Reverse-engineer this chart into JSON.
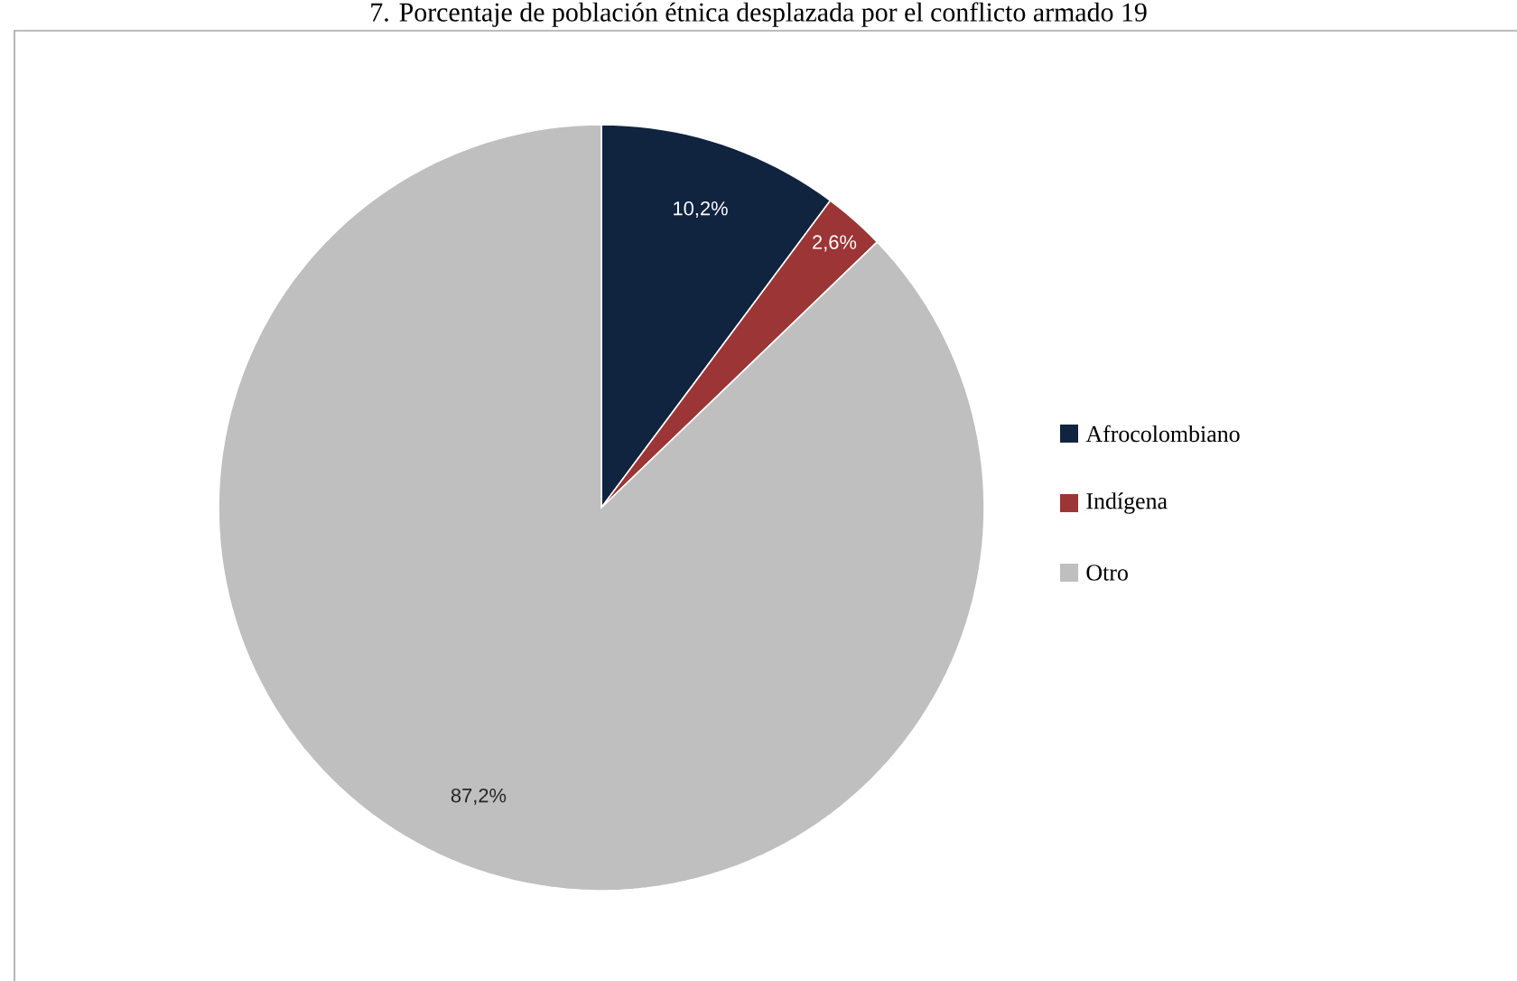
{
  "chart_data": {
    "type": "pie",
    "title": "7. Porcentaje de población étnica desplazada por el conflicto armado 19",
    "categories": [
      "Afrocolombiano",
      "Indígena",
      "Otro"
    ],
    "values": [
      10.2,
      2.6,
      87.2
    ],
    "colors": [
      "#10233f",
      "#9c3535",
      "#bfbfbf"
    ],
    "value_labels": [
      "10,2%",
      "2,6%",
      "87,2%"
    ],
    "legend": "right"
  }
}
